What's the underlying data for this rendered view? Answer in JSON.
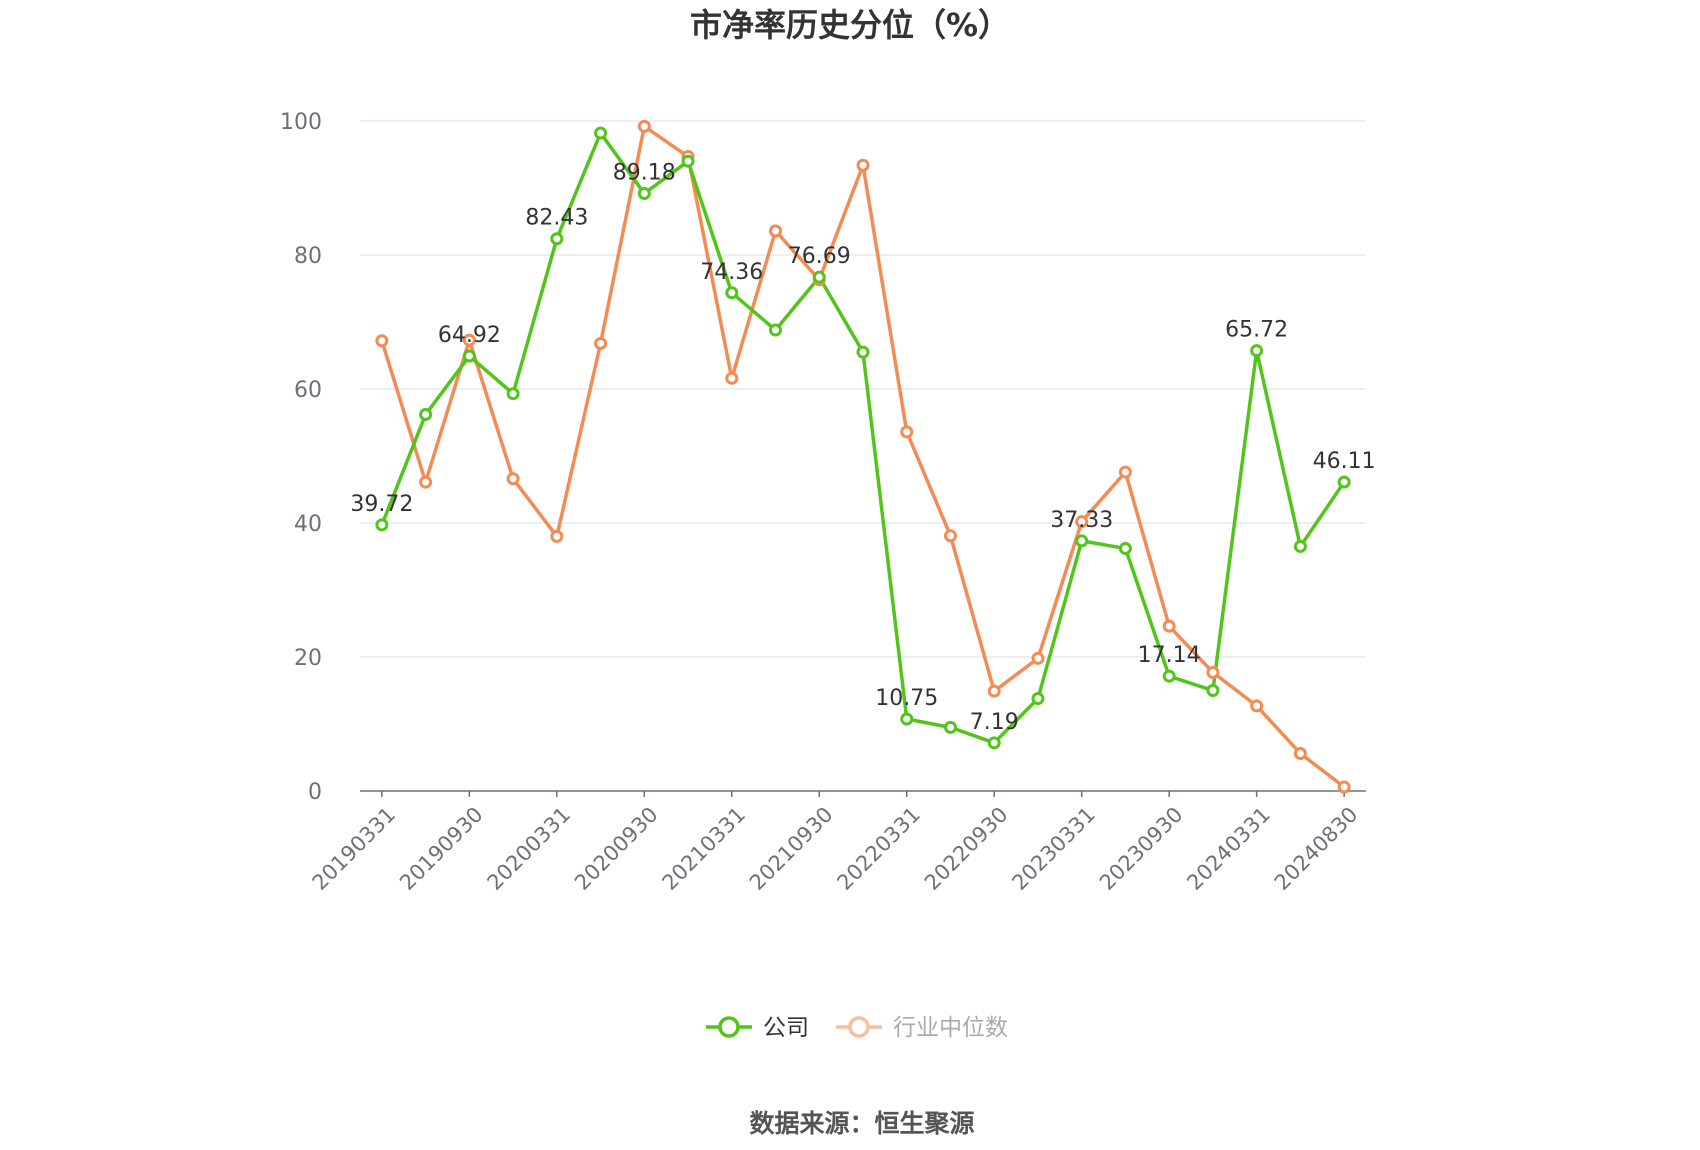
{
  "chart_data": {
    "type": "line",
    "title": "市净率历史分位（%）",
    "source": "数据来源：恒生聚源",
    "ylim": [
      0,
      100
    ],
    "y_ticks": [
      "0",
      "20",
      "40",
      "60",
      "80",
      "100"
    ],
    "grid": true,
    "legend_position": "bottom-center",
    "x": [
      "20190331",
      "20190630",
      "20190930",
      "20191231",
      "20200331",
      "20200630",
      "20200930",
      "20201231",
      "20210331",
      "20210630",
      "20210930",
      "20211231",
      "20220331",
      "20220630",
      "20220930",
      "20221231",
      "20230331",
      "20230630",
      "20230930",
      "20231231",
      "20240331",
      "20240630",
      "20240830"
    ],
    "x_tick_labels": [
      "20190331",
      "20190930",
      "20200331",
      "20200930",
      "20210331",
      "20210930",
      "20220331",
      "20220930",
      "20230331",
      "20230930",
      "20240331",
      "20240830"
    ],
    "series": [
      {
        "name": "公司",
        "color": "#52c41a",
        "values": [
          39.72,
          56.2,
          64.92,
          59.3,
          82.43,
          98.2,
          89.18,
          94.0,
          74.36,
          68.8,
          76.69,
          65.5,
          10.75,
          9.5,
          7.19,
          13.8,
          37.33,
          36.2,
          17.14,
          15.0,
          65.72,
          36.5,
          46.11
        ],
        "labels": {
          "0": "39.72",
          "2": "64.92",
          "4": "82.43",
          "6": "89.18",
          "8": "74.36",
          "10": "76.69",
          "12": "10.75",
          "14": "7.19",
          "16": "37.33",
          "18": "17.14",
          "20": "65.72",
          "22": "46.11"
        }
      },
      {
        "name": "行业中位数",
        "color": "#f28b54",
        "values": [
          67.2,
          46.1,
          67.3,
          46.6,
          38.0,
          66.8,
          99.2,
          94.7,
          61.6,
          83.6,
          76.3,
          93.4,
          53.6,
          38.1,
          14.9,
          19.8,
          40.2,
          47.6,
          24.6,
          17.7,
          12.7,
          5.6,
          0.6
        ]
      }
    ]
  }
}
